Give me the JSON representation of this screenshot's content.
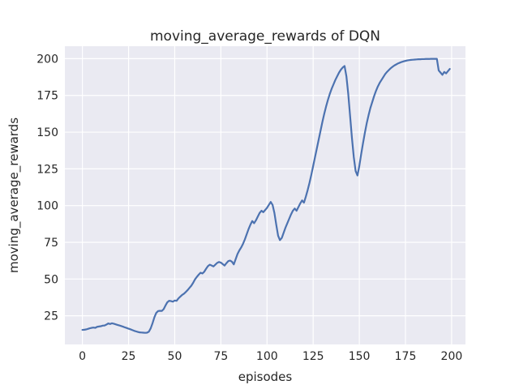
{
  "figure": {
    "background": "#ffffff"
  },
  "chart_data": {
    "type": "line",
    "title": "moving_average_rewards of DQN",
    "xlabel": "episodes",
    "ylabel": "moving_average_rewards",
    "legend": "none",
    "grid": true,
    "style": "seaborn-darkgrid",
    "line_color": "#4C72B0",
    "plot_bg": "#EAEAF2",
    "grid_color": "#FFFFFF",
    "text_color": "#262626",
    "x_ticks": [
      0,
      25,
      50,
      75,
      100,
      125,
      150,
      175,
      200
    ],
    "y_ticks": [
      25,
      50,
      75,
      100,
      125,
      150,
      175,
      200
    ],
    "xlim": [
      -9.5,
      207.5
    ],
    "ylim": [
      5.5,
      208.5
    ],
    "x_start": 0,
    "x_step": 1,
    "values": [
      15.4,
      15.5,
      15.7,
      16.1,
      16.5,
      16.8,
      17.0,
      16.8,
      17.5,
      17.7,
      17.9,
      18.3,
      18.4,
      19.0,
      19.8,
      19.4,
      19.9,
      19.6,
      19.2,
      18.8,
      18.4,
      18.0,
      17.6,
      17.1,
      16.7,
      16.2,
      15.8,
      15.3,
      14.8,
      14.4,
      14.0,
      13.7,
      13.6,
      13.5,
      13.4,
      13.5,
      14.2,
      16.5,
      20.0,
      24.0,
      27.0,
      28.2,
      28.4,
      28.3,
      29.5,
      32.0,
      34.2,
      35.2,
      35.0,
      34.6,
      35.4,
      35.2,
      36.8,
      38.0,
      39.2,
      40.0,
      41.2,
      42.5,
      44.0,
      45.5,
      47.5,
      49.8,
      51.5,
      53.0,
      54.3,
      53.8,
      55.0,
      57.0,
      58.8,
      59.8,
      59.2,
      58.6,
      59.8,
      61.0,
      61.6,
      61.2,
      60.2,
      59.2,
      60.8,
      62.2,
      62.6,
      61.8,
      60.0,
      63.5,
      67.0,
      69.5,
      71.5,
      74.0,
      77.0,
      80.5,
      84.0,
      87.0,
      89.5,
      88.0,
      90.0,
      92.5,
      95.0,
      96.5,
      95.5,
      97.0,
      98.5,
      100.5,
      102.5,
      100.5,
      95.0,
      87.0,
      79.5,
      76.5,
      78.0,
      81.5,
      85.0,
      88.0,
      91.0,
      94.0,
      96.5,
      98.0,
      96.5,
      99.0,
      101.5,
      103.5,
      102.0,
      106.0,
      110.5,
      115.5,
      121.0,
      127.0,
      133.0,
      139.0,
      145.0,
      151.0,
      157.0,
      162.5,
      167.5,
      172.0,
      176.0,
      179.5,
      182.5,
      185.5,
      188.0,
      190.5,
      192.5,
      194.0,
      195.0,
      188.0,
      176.0,
      161.0,
      146.0,
      133.0,
      123.5,
      120.5,
      127.0,
      135.0,
      142.5,
      149.5,
      156.0,
      161.5,
      166.5,
      170.5,
      174.5,
      178.0,
      181.0,
      183.5,
      185.5,
      187.5,
      189.5,
      191.0,
      192.3,
      193.5,
      194.5,
      195.4,
      196.1,
      196.8,
      197.3,
      197.8,
      198.2,
      198.5,
      198.8,
      199.0,
      199.2,
      199.3,
      199.4,
      199.5,
      199.6,
      199.6,
      199.7,
      199.7,
      199.8,
      199.8,
      199.8,
      199.9,
      199.9,
      199.9,
      199.9,
      192.0,
      190.5,
      189.0,
      191.0,
      190.0,
      191.5,
      193.0
    ]
  }
}
